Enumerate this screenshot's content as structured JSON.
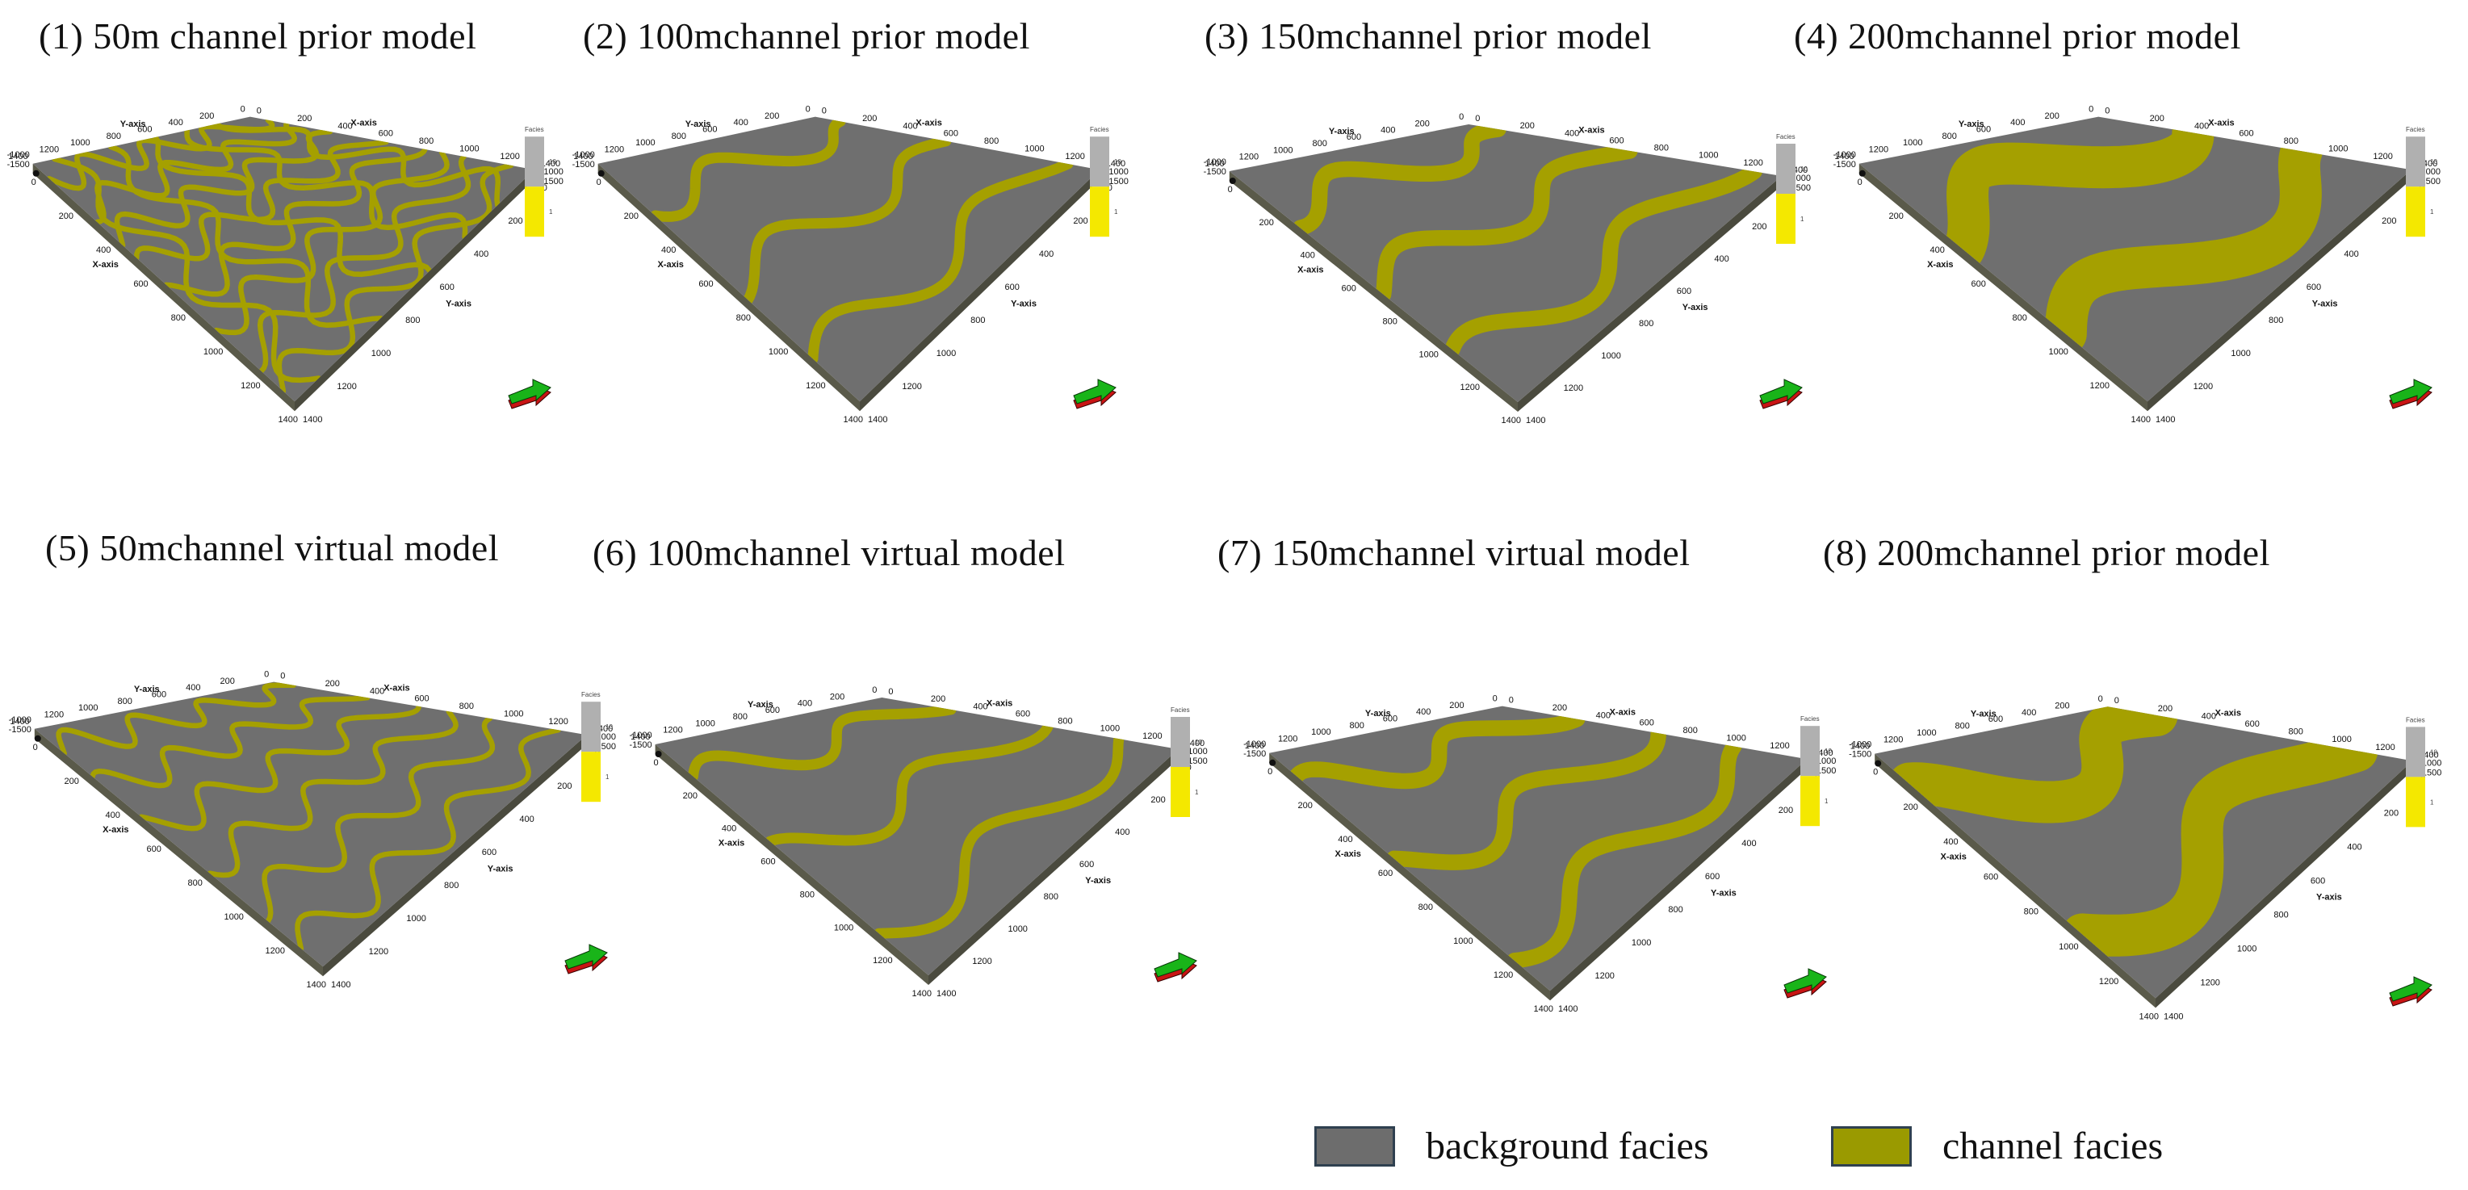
{
  "panels": [
    {
      "title": "(1) 50m channel prior model",
      "channel_width_m": 50,
      "channels": 8
    },
    {
      "title": "(2) 100mchannel prior model",
      "channel_width_m": 100,
      "channels": 3
    },
    {
      "title": "(3) 150mchannel prior model",
      "channel_width_m": 150,
      "channels": 3
    },
    {
      "title": "(4) 200mchannel prior model",
      "channel_width_m": 200,
      "channels": 2
    },
    {
      "title": "(5) 50mchannel virtual model",
      "channel_width_m": 50,
      "channels": 6
    },
    {
      "title": "(6) 100mchannel virtual model",
      "channel_width_m": 100,
      "channels": 3
    },
    {
      "title": "(7) 150mchannel virtual model",
      "channel_width_m": 150,
      "channels": 3
    },
    {
      "title": "(8) 200mchannel prior model",
      "channel_width_m": 200,
      "channels": 2
    }
  ],
  "axes": {
    "x_name": "X-axis",
    "y_name": "Y-axis",
    "ticks": [
      "0",
      "200",
      "400",
      "600",
      "800",
      "1000",
      "1200",
      "1400"
    ],
    "z_ticks": [
      "-1000",
      "-1500"
    ]
  },
  "colorbar": {
    "title": "Facies",
    "labels": [
      "10",
      "1"
    ]
  },
  "legend": {
    "items": [
      {
        "label": "background facies",
        "color": "#6d6d6d"
      },
      {
        "label": "channel facies",
        "color": "#9a9a00"
      }
    ]
  },
  "colors": {
    "background_facies": "#6f6f6f",
    "channel_facies": "#a5a000",
    "block_side": "#5a5a4a",
    "colorbar_grey": "#b0b0b0",
    "colorbar_yellow": "#f4e800",
    "compass_green": "#19b419",
    "compass_red": "#c81414"
  }
}
